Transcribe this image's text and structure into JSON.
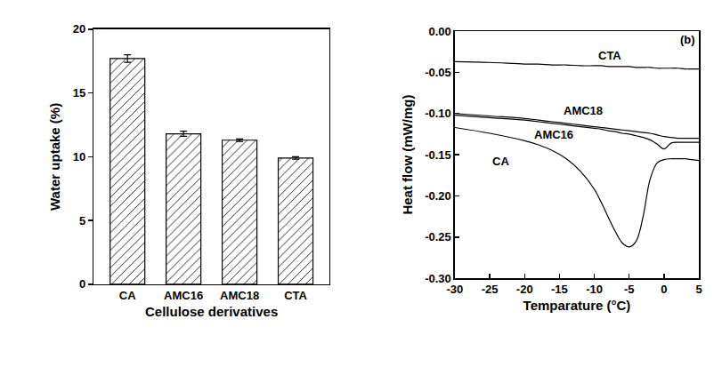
{
  "chart_data": [
    {
      "type": "bar",
      "categories": [
        "CA",
        "AMC16",
        "AMC18",
        "CTA"
      ],
      "values": [
        17.7,
        11.8,
        11.3,
        9.9
      ],
      "errors": [
        0.3,
        0.2,
        0.1,
        0.1
      ],
      "color": "#ffffff",
      "marker": "hatch",
      "x_label": "Cellulose derivatives",
      "y_label": "Water uptake (%)",
      "ylim": [
        0,
        20
      ],
      "yticks": [
        0,
        5,
        10,
        15,
        20
      ],
      "grid": false
    },
    {
      "type": "line",
      "x": [
        -30,
        -25,
        -20,
        -18,
        -16,
        -14,
        -12,
        -10,
        -9,
        -8,
        -7,
        -6,
        -5,
        -4,
        -3,
        -2,
        -1,
        0,
        1,
        2,
        3,
        4,
        5
      ],
      "series": [
        {
          "name": "CTA",
          "color": "#000000",
          "values": [
            -0.037,
            -0.038,
            -0.04,
            -0.04,
            -0.041,
            -0.041,
            -0.042,
            -0.042,
            -0.042,
            -0.043,
            -0.043,
            -0.043,
            -0.043,
            -0.044,
            -0.044,
            -0.044,
            -0.045,
            -0.045,
            -0.045,
            -0.045,
            -0.046,
            -0.046,
            -0.046
          ]
        },
        {
          "name": "AMC18",
          "color": "#000000",
          "values": [
            -0.1,
            -0.103,
            -0.106,
            -0.108,
            -0.11,
            -0.112,
            -0.114,
            -0.116,
            -0.117,
            -0.118,
            -0.119,
            -0.12,
            -0.121,
            -0.122,
            -0.123,
            -0.124,
            -0.126,
            -0.128,
            -0.129,
            -0.13,
            -0.13,
            -0.13,
            -0.13
          ]
        },
        {
          "name": "AMC16",
          "color": "#000000",
          "values": [
            -0.102,
            -0.105,
            -0.108,
            -0.11,
            -0.112,
            -0.114,
            -0.116,
            -0.118,
            -0.119,
            -0.121,
            -0.122,
            -0.124,
            -0.125,
            -0.127,
            -0.129,
            -0.132,
            -0.137,
            -0.143,
            -0.136,
            -0.135,
            -0.135,
            -0.135,
            -0.135
          ]
        },
        {
          "name": "CA",
          "color": "#000000",
          "values": [
            -0.117,
            -0.124,
            -0.133,
            -0.138,
            -0.145,
            -0.155,
            -0.17,
            -0.192,
            -0.208,
            -0.226,
            -0.243,
            -0.257,
            -0.262,
            -0.255,
            -0.225,
            -0.18,
            -0.16,
            -0.156,
            -0.155,
            -0.155,
            -0.155,
            -0.156,
            -0.157
          ]
        }
      ],
      "annotations": [
        {
          "text": "CTA",
          "x": -7.8,
          "y": -0.03
        },
        {
          "text": "AMC18",
          "x": -11.6,
          "y": -0.096
        },
        {
          "text": "AMC16",
          "x": -15.8,
          "y": -0.126
        },
        {
          "text": "CA",
          "x": -23.4,
          "y": -0.158
        },
        {
          "text": "(b)",
          "x": 3.4,
          "y": -0.01
        }
      ],
      "x_label": "Temparature (°C)",
      "y_label": "Heat flow (mW/mg)",
      "xlim": [
        -30,
        5
      ],
      "xticks": [
        -30,
        -25,
        -20,
        -15,
        -10,
        -5,
        0,
        5
      ],
      "ylim": [
        -0.3,
        0.0
      ],
      "yticks": [
        {
          "value": -0.3,
          "label": "-0.30"
        },
        {
          "value": -0.25,
          "label": "-0.25"
        },
        {
          "value": -0.2,
          "label": "-0.20"
        },
        {
          "value": -0.15,
          "label": "-0.15"
        },
        {
          "value": -0.1,
          "label": "-0.10"
        },
        {
          "value": -0.05,
          "label": "-0.05"
        },
        {
          "value": 0.0,
          "label": "0.00"
        }
      ],
      "grid": false
    }
  ]
}
